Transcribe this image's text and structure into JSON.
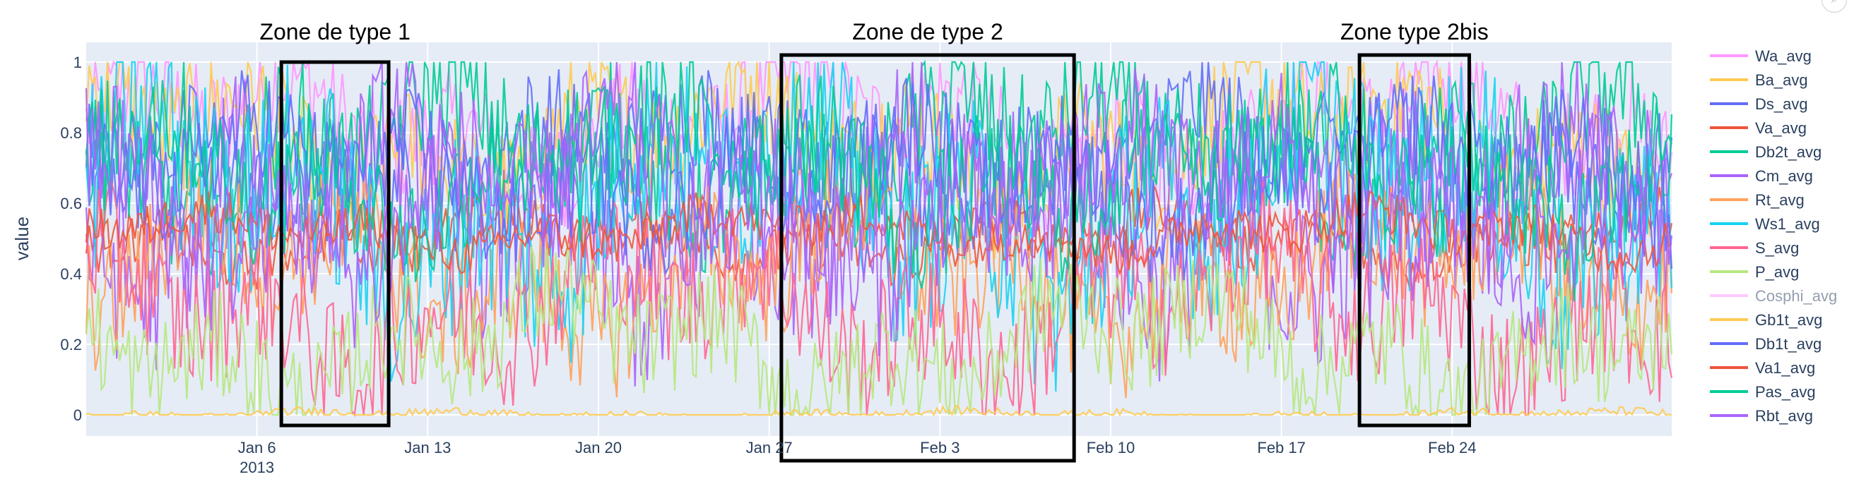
{
  "chart_data": {
    "type": "line",
    "title": "",
    "ylabel": "value",
    "xlabel": "",
    "ylim": [
      0,
      1
    ],
    "xrange": [
      "2012-12-30",
      "2013-03-05"
    ],
    "x_ticks": [
      {
        "date": "2013-01-06",
        "label": "Jan 6",
        "sub": "2013"
      },
      {
        "date": "2013-01-13",
        "label": "Jan 13"
      },
      {
        "date": "2013-01-20",
        "label": "Jan 20"
      },
      {
        "date": "2013-01-27",
        "label": "Jan 27"
      },
      {
        "date": "2013-02-03",
        "label": "Feb 3"
      },
      {
        "date": "2013-02-10",
        "label": "Feb 10"
      },
      {
        "date": "2013-02-17",
        "label": "Feb 17"
      },
      {
        "date": "2013-02-24",
        "label": "Feb 24"
      }
    ],
    "y_ticks": [
      {
        "value": 0,
        "label": "0"
      },
      {
        "value": 0.2,
        "label": "0.2"
      },
      {
        "value": 0.4,
        "label": "0.4"
      },
      {
        "value": 0.6,
        "label": "0.6"
      },
      {
        "value": 0.8,
        "label": "0.8"
      },
      {
        "value": 1,
        "label": "1"
      }
    ],
    "grid": true,
    "legend_position": "right",
    "series": [
      {
        "name": "Wa_avg",
        "color": "#FF97FF",
        "visible": true,
        "base": 0.82,
        "amp": 0.25
      },
      {
        "name": "Ba_avg",
        "color": "#FECB52",
        "visible": true,
        "base": 0.78,
        "amp": 0.28
      },
      {
        "name": "Ds_avg",
        "color": "#636EFA",
        "visible": true,
        "base": 0.72,
        "amp": 0.25
      },
      {
        "name": "Va_avg",
        "color": "#EF553B",
        "visible": true,
        "base": 0.5,
        "amp": 0.12
      },
      {
        "name": "Db2t_avg",
        "color": "#00CC96",
        "visible": true,
        "base": 0.75,
        "amp": 0.3
      },
      {
        "name": "Cm_avg",
        "color": "#AB63FA",
        "visible": true,
        "base": 0.55,
        "amp": 0.4
      },
      {
        "name": "Rt_avg",
        "color": "#FFA15A",
        "visible": true,
        "base": 0.4,
        "amp": 0.3
      },
      {
        "name": "Ws1_avg",
        "color": "#19D3F3",
        "visible": true,
        "base": 0.6,
        "amp": 0.45
      },
      {
        "name": "S_avg",
        "color": "#FF6692",
        "visible": true,
        "base": 0.3,
        "amp": 0.3
      },
      {
        "name": "P_avg",
        "color": "#B6E880",
        "visible": true,
        "base": 0.2,
        "amp": 0.25
      },
      {
        "name": "Cosphi_avg",
        "color": "#FF97FF",
        "visible": false,
        "base": 0.9,
        "amp": 0.1
      },
      {
        "name": "Gb1t_avg",
        "color": "#FECB52",
        "visible": true,
        "base": 0.0,
        "amp": 0.02
      },
      {
        "name": "Db1t_avg",
        "color": "#636EFA",
        "visible": true,
        "base": 0.68,
        "amp": 0.25
      },
      {
        "name": "Va1_avg",
        "color": "#EF553B",
        "visible": true,
        "base": 0.52,
        "amp": 0.1
      },
      {
        "name": "Pas_avg",
        "color": "#00CC96",
        "visible": true,
        "base": 0.7,
        "amp": 0.3
      },
      {
        "name": "Rbt_avg",
        "color": "#AB63FA",
        "visible": true,
        "base": 0.6,
        "amp": 0.35
      }
    ],
    "annotations": [
      {
        "label": "Zone de type 1",
        "x_start": "2013-01-07",
        "x_end": "2013-01-11.4",
        "y_top": 1.0,
        "y_bottom": -0.03
      },
      {
        "label": "Zone de type 2",
        "x_start": "2013-01-27.5",
        "x_end": "2013-02-08.5",
        "y_top": 1.02,
        "y_bottom": -0.13
      },
      {
        "label": "Zone type 2bis",
        "x_start": "2013-02-20.2",
        "x_end": "2013-02-24.7",
        "y_top": 1.02,
        "y_bottom": -0.03
      }
    ]
  },
  "ui": {
    "corner_icon": "comment-icon",
    "corner_glyph": "⌕"
  }
}
